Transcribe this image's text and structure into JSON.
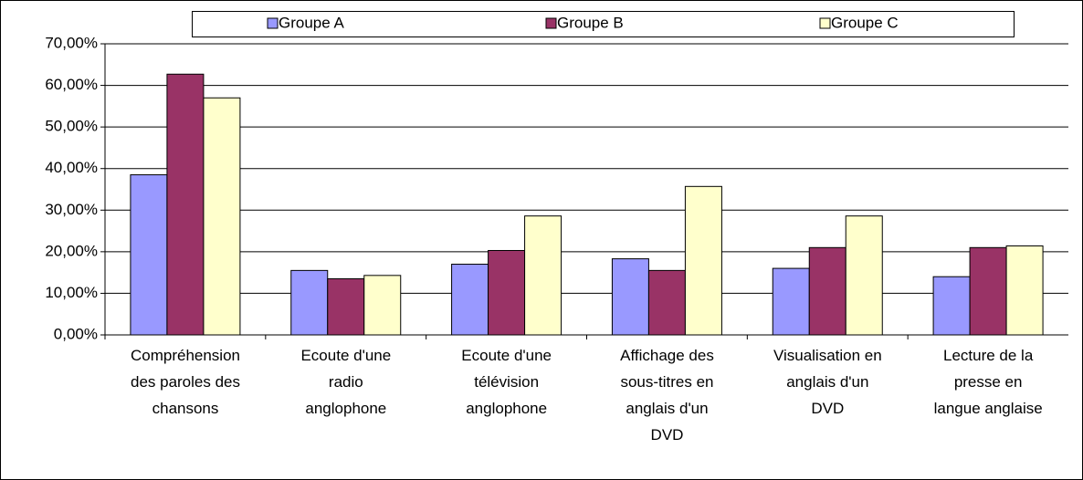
{
  "chart_data": {
    "type": "bar",
    "categories": [
      "Compréhension\ndes paroles des\nchansons",
      "Ecoute d'une\nradio\nanglophone",
      "Ecoute d'une\ntélévision\nanglophone",
      "Affichage des\nsous-titres en\nanglais d'un\nDVD",
      "Visualisation en\nanglais d'un\nDVD",
      "Lecture de la\npresse en\nlangue anglaise"
    ],
    "series": [
      {
        "name": "Groupe A",
        "color": "#9999ff",
        "values": [
          38.5,
          15.5,
          17,
          18.3,
          16,
          14
        ]
      },
      {
        "name": "Groupe B",
        "color": "#993366",
        "values": [
          62.7,
          13.5,
          20.3,
          15.5,
          21,
          21
        ]
      },
      {
        "name": "Groupe C",
        "color": "#ffffcc",
        "values": [
          57,
          14.3,
          28.6,
          35.7,
          28.6,
          21.4
        ]
      }
    ],
    "ylim": [
      0,
      70
    ],
    "yticks": [
      {
        "value": 0,
        "label": "0,00%"
      },
      {
        "value": 10,
        "label": "10,00%"
      },
      {
        "value": 20,
        "label": "20,00%"
      },
      {
        "value": 30,
        "label": "30,00%"
      },
      {
        "value": 40,
        "label": "40,00%"
      },
      {
        "value": 50,
        "label": "50,00%"
      },
      {
        "value": 60,
        "label": "60,00%"
      },
      {
        "value": 70,
        "label": "70,00%"
      }
    ],
    "grid": true,
    "legend": "top"
  }
}
